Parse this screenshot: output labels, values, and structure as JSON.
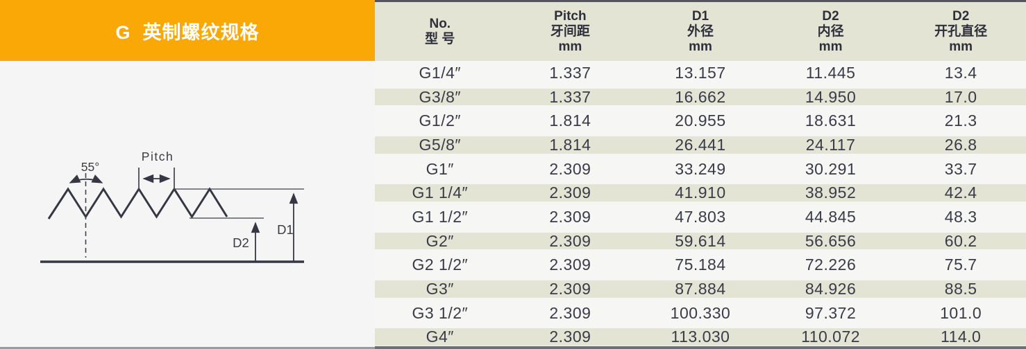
{
  "banner": {
    "title": "G  英制螺纹规格"
  },
  "diagram": {
    "labels": {
      "angle": "55°",
      "pitch": "Pitch",
      "d1": "D1",
      "d2": "D2"
    }
  },
  "table": {
    "columns": [
      {
        "lines": [
          "No.",
          "型 号"
        ]
      },
      {
        "lines": [
          "Pitch",
          "牙间距",
          "mm"
        ]
      },
      {
        "lines": [
          "D1",
          "外径",
          "mm"
        ]
      },
      {
        "lines": [
          "D2",
          "内径",
          "mm"
        ]
      },
      {
        "lines": [
          "D2",
          "开孔直径",
          "mm"
        ]
      }
    ],
    "rows": [
      [
        "G1/4″",
        "1.337",
        "13.157",
        "11.445",
        "13.4"
      ],
      [
        "G3/8″",
        "1.337",
        "16.662",
        "14.950",
        "17.0"
      ],
      [
        "G1/2″",
        "1.814",
        "20.955",
        "18.631",
        "21.3"
      ],
      [
        "G5/8″",
        "1.814",
        "26.441",
        "24.117",
        "26.8"
      ],
      [
        "G1″",
        "2.309",
        "33.249",
        "30.291",
        "33.7"
      ],
      [
        "G1 1/4″",
        "2.309",
        "41.910",
        "38.952",
        "42.4"
      ],
      [
        "G1 1/2″",
        "2.309",
        "47.803",
        "44.845",
        "48.3"
      ],
      [
        "G2″",
        "2.309",
        "59.614",
        "56.656",
        "60.2"
      ],
      [
        "G2 1/2″",
        "2.309",
        "75.184",
        "72.226",
        "75.7"
      ],
      [
        "G3″",
        "2.309",
        "87.884",
        "84.926",
        "88.5"
      ],
      [
        "G3 1/2″",
        "2.309",
        "100.330",
        "97.372",
        "101.0"
      ],
      [
        "G4″",
        "2.309",
        "113.030",
        "110.072",
        "114.0"
      ]
    ]
  },
  "colors": {
    "accent": "#f9a806",
    "stripe": "#e3e4d4",
    "header_bg": "#e3e4d4",
    "row_bg": "#f6f6f4",
    "panel_bg": "#f5f5f5",
    "ink": "#3a3b49",
    "head_ink": "#2e2f3a",
    "rule_top": "#54555b",
    "rule_bottom": "#6e6f74"
  }
}
